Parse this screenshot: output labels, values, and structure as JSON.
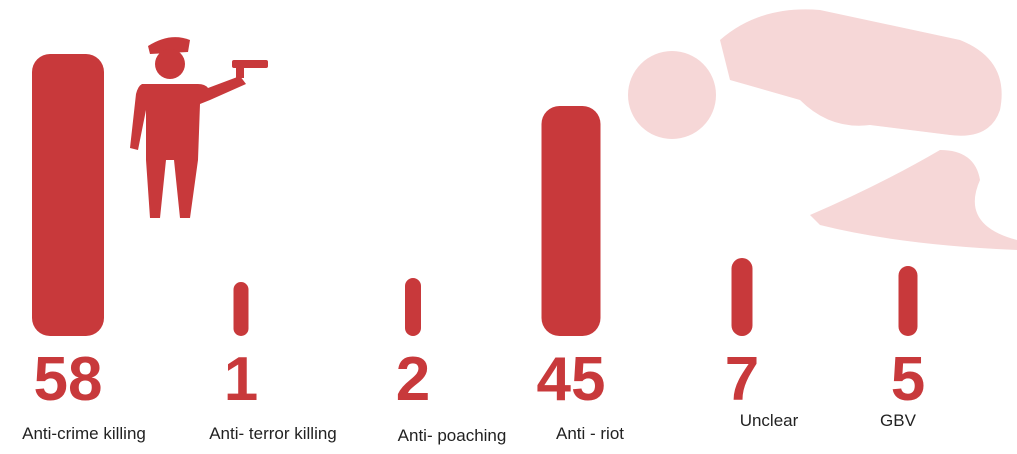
{
  "chart_data": {
    "type": "bar",
    "categories": [
      "Anti-crime killing",
      "Anti- terror killing",
      "Anti- poaching",
      "Anti - riot",
      "Unclear",
      "GBV"
    ],
    "values": [
      58,
      1,
      2,
      45,
      7,
      5
    ],
    "color": "#c8393b"
  }
}
